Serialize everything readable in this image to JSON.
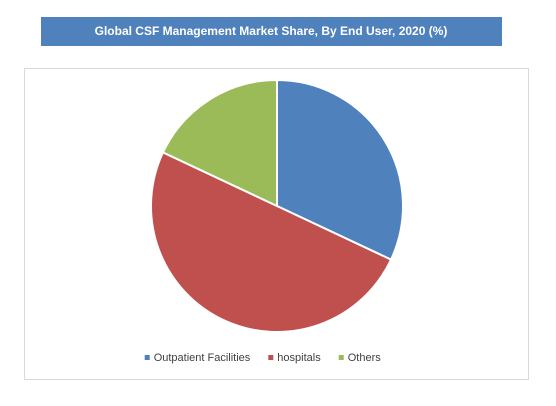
{
  "chart_data": {
    "type": "pie",
    "title": "Global CSF Management Market Share, By End User, 2020 (%)",
    "categories": [
      "Outpatient Facilities",
      "hospitals",
      "Others"
    ],
    "values": [
      32,
      50,
      18
    ],
    "colors": [
      "#4f81bd",
      "#c0504d",
      "#9bbb59"
    ],
    "legend": "bottom"
  }
}
